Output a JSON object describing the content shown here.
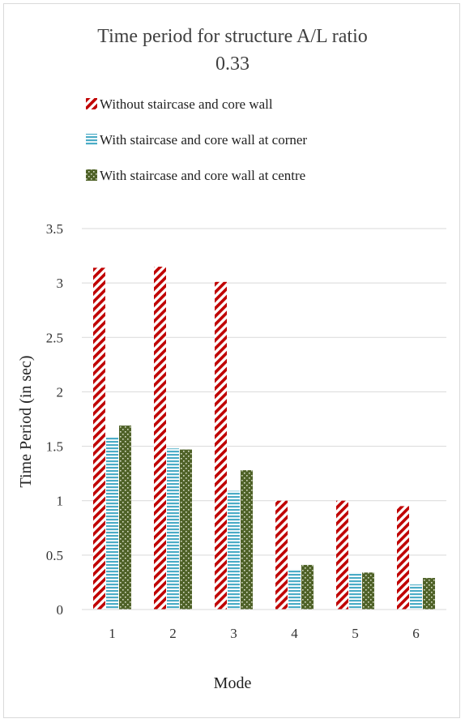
{
  "chart_data": {
    "type": "bar",
    "title": [
      "Time period for structure A/L ratio",
      "0.33"
    ],
    "xlabel": "Mode",
    "ylabel": "Time Period (in sec)",
    "categories": [
      "1",
      "2",
      "3",
      "4",
      "5",
      "6"
    ],
    "ylim": [
      0,
      3.5
    ],
    "yticks": [
      "0",
      "0.5",
      "1",
      "1.5",
      "2",
      "2.5",
      "3",
      "3.5"
    ],
    "grid": true,
    "legend_position": "top",
    "series": [
      {
        "name": "Without staircase and core wall",
        "values": [
          3.14,
          3.15,
          3.01,
          1.0,
          1.0,
          0.95
        ],
        "color": "#c00000",
        "pattern": "diagonal-stripes"
      },
      {
        "name": "With staircase and core wall at corner",
        "values": [
          1.59,
          1.48,
          1.09,
          0.37,
          0.34,
          0.23
        ],
        "color": "#4bacc6",
        "pattern": "horizontal-stripes"
      },
      {
        "name": "With staircase and core wall at centre",
        "values": [
          1.69,
          1.47,
          1.28,
          0.41,
          0.34,
          0.29
        ],
        "color": "#4f6228",
        "pattern": "checker-dots"
      }
    ]
  }
}
